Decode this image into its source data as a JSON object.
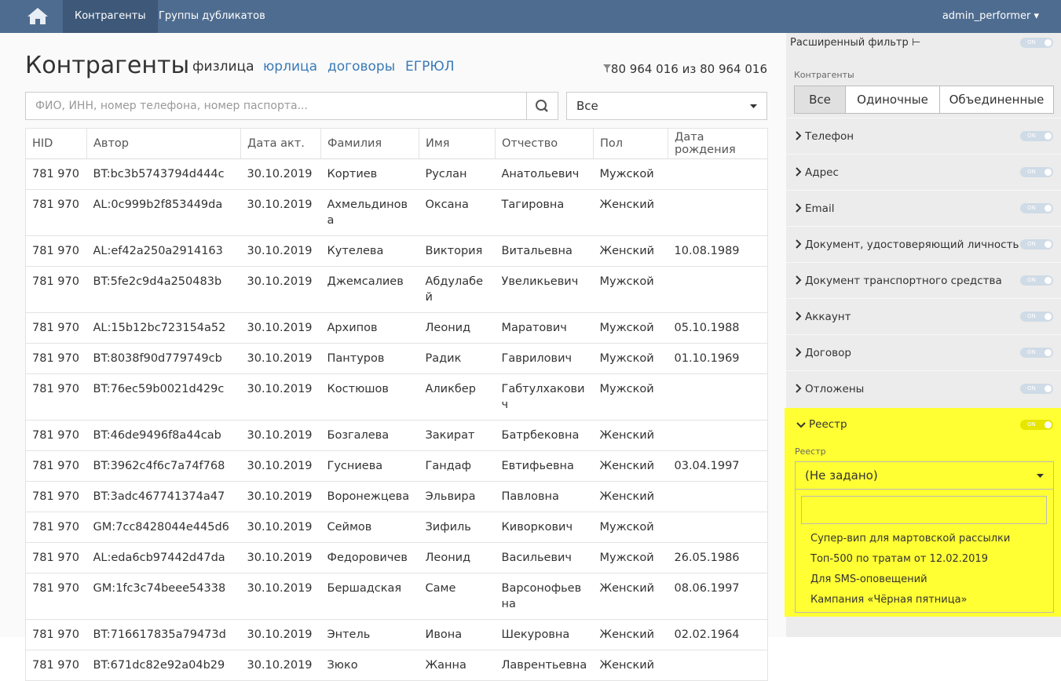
{
  "navbar": {
    "tabs": [
      "Контрагенты",
      "Группы дубликатов"
    ],
    "user": "admin_performer"
  },
  "page": {
    "title": "Контрагенты",
    "tabs": [
      "физлица",
      "юрлица",
      "договоры",
      "ЕГРЮЛ"
    ],
    "count": {
      "shown": "80 964 016",
      "separator": "из",
      "total": "80 964 016"
    },
    "search_placeholder": "ФИО, ИНН, номер телефона, номер паспорта...",
    "scope_select": "Все"
  },
  "table": {
    "columns": [
      "HID",
      "Автор",
      "Дата акт.",
      "Фамилия",
      "Имя",
      "Отчество",
      "Пол",
      "Дата рождения"
    ],
    "rows": [
      [
        "781 970",
        "BT:bc3b5743794d444c",
        "30.10.2019",
        "Кортиев",
        "Руслан",
        "Анатольевич",
        "Мужской",
        null
      ],
      [
        "781 970",
        "AL:0c999b2f853449da",
        "30.10.2019",
        "Ахмельдинова",
        "Оксана",
        "Тагировна",
        "Женский",
        null
      ],
      [
        "781 970",
        "AL:ef42a250a2914163",
        "30.10.2019",
        "Кутелева",
        "Виктория",
        "Витальевна",
        "Женский",
        "10.08.1989"
      ],
      [
        "781 970",
        "BT:5fe2c9d4a250483b",
        "30.10.2019",
        "Джемсалиев",
        "Абдулабей",
        "Увеликьевич",
        "Мужской",
        null
      ],
      [
        "781 970",
        "AL:15b12bc723154a52",
        "30.10.2019",
        "Архипов",
        "Леонид",
        "Маратович",
        "Мужской",
        "05.10.1988"
      ],
      [
        "781 970",
        "BT:8038f90d779749cb",
        "30.10.2019",
        "Пантуров",
        "Радик",
        "Гаврилович",
        "Мужской",
        "01.10.1969"
      ],
      [
        "781 970",
        "BT:76ec59b0021d429c",
        "30.10.2019",
        "Костюшов",
        "Аликбер",
        "Габтулхакович",
        "Мужской",
        null
      ],
      [
        "781 970",
        "BT:46de9496f8a44cab",
        "30.10.2019",
        "Бозгалева",
        "Закират",
        "Батрбековна",
        "Женский",
        null
      ],
      [
        "781 970",
        "BT:3962c4f6c7a74f768",
        "30.10.2019",
        "Гусниева",
        "Гандаф",
        "Евтифьевна",
        "Женский",
        "03.04.1997"
      ],
      [
        "781 970",
        "BT:3adc467741374a47",
        "30.10.2019",
        "Воронежцева",
        "Эльвира",
        "Павловна",
        "Женский",
        null
      ],
      [
        "781 970",
        "GM:7cc8428044e445d6",
        "30.10.2019",
        "Сеймов",
        "Зифиль",
        "Киворкович",
        "Мужской",
        null
      ],
      [
        "781 970",
        "AL:eda6cb97442d47da",
        "30.10.2019",
        "Федоровичев",
        "Леонид",
        "Васильевич",
        "Мужской",
        "26.05.1986"
      ],
      [
        "781 970",
        "GM:1fc3c74beee54338",
        "30.10.2019",
        "Бершадская",
        "Саме",
        "Варсонофьевна",
        "Женский",
        "08.06.1997"
      ],
      [
        "781 970",
        "BT:716617835a79473d",
        "30.10.2019",
        "Энтель",
        "Ивона",
        "Шекуровна",
        "Женский",
        "02.02.1964"
      ],
      [
        "781 970",
        "BT:671dc82e92a04b29",
        "30.10.2019",
        "Зюко",
        "Жанна",
        "Лаврентьевна",
        "Женский",
        null
      ]
    ]
  },
  "sidebar": {
    "title": "Расширенный фильтр",
    "toggle": "ON",
    "group_label": "Контрагенты",
    "group_buttons": [
      "Все",
      "Одиночные",
      "Объединенные"
    ],
    "sections": [
      "Телефон",
      "Адрес",
      "Email",
      "Документ, удостоверяющий личность",
      "Документ транспортного средства",
      "Аккаунт",
      "Договор",
      "Отложены"
    ],
    "registry": {
      "title": "Реестр",
      "label": "Реестр",
      "selected": "(Не задано)",
      "options": [
        "Супер-вип для мартовской рассылки",
        "Топ-500 по тратам от 12.02.2019",
        "Для SMS-оповещений",
        "Кампания «Чёрная пятница»"
      ]
    }
  }
}
